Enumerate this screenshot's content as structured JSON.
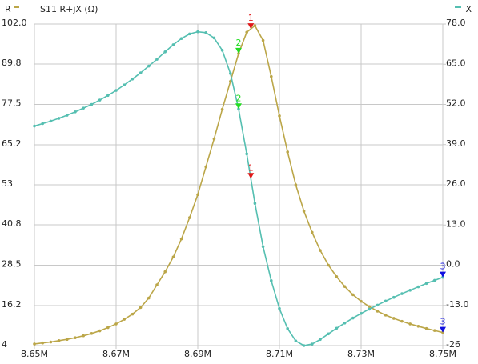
{
  "chart_data": {
    "type": "line",
    "title": "S11 R+jX (Ω)",
    "x": [
      8.65,
      8.652,
      8.654,
      8.656,
      8.658,
      8.66,
      8.662,
      8.664,
      8.666,
      8.668,
      8.67,
      8.672,
      8.674,
      8.676,
      8.678,
      8.68,
      8.682,
      8.684,
      8.686,
      8.688,
      8.69,
      8.692,
      8.694,
      8.696,
      8.698,
      8.7,
      8.702,
      8.704,
      8.706,
      8.708,
      8.71,
      8.712,
      8.714,
      8.716,
      8.718,
      8.72,
      8.722,
      8.724,
      8.726,
      8.728,
      8.73,
      8.732,
      8.734,
      8.736,
      8.738,
      8.74,
      8.742,
      8.744,
      8.746,
      8.748,
      8.75
    ],
    "series": [
      {
        "name": "R",
        "color": "#bba648",
        "values": [
          4.5,
          4.8,
          5.1,
          5.5,
          5.9,
          6.4,
          7.0,
          7.7,
          8.5,
          9.5,
          10.6,
          12.0,
          13.6,
          15.6,
          18.5,
          22.5,
          26.5,
          31,
          36.5,
          43,
          50,
          58.5,
          67,
          76,
          84.5,
          93,
          99.5,
          101.5,
          97,
          86,
          74,
          63,
          53,
          45,
          38.5,
          33,
          28.5,
          25,
          22,
          19.5,
          17.5,
          15.9,
          14.5,
          13.3,
          12.3,
          11.4,
          10.6,
          9.9,
          9.2,
          8.6,
          8.0
        ]
      },
      {
        "name": "X",
        "color": "#55bfb1",
        "axis": "y2",
        "values": [
          45,
          45.8,
          46.6,
          47.5,
          48.5,
          49.6,
          50.8,
          52.0,
          53.4,
          54.9,
          56.5,
          58.3,
          60.2,
          62.2,
          64.4,
          66.6,
          69.0,
          71.3,
          73.3,
          74.8,
          75.5,
          75.2,
          73.5,
          69.5,
          62,
          50.5,
          36,
          20,
          6,
          -5,
          -14,
          -20.5,
          -24.5,
          -26,
          -25.5,
          -24,
          -22.2,
          -20.4,
          -18.7,
          -17.1,
          -15.6,
          -14.2,
          -12.9,
          -11.6,
          -10.4,
          -9.2,
          -8.1,
          -7.0,
          -5.9,
          -4.9,
          -3.9
        ]
      }
    ],
    "markers": [
      {
        "label": "1",
        "x": 8.703,
        "color": "#e01818"
      },
      {
        "label": "2",
        "x": 8.7,
        "color": "#22dd22"
      },
      {
        "label": "3",
        "x": 8.75,
        "color": "#1010e0"
      }
    ],
    "xlim": [
      8.65,
      8.75
    ],
    "xticks": [
      {
        "value": 8.65,
        "label": "8.65M"
      },
      {
        "value": 8.67,
        "label": "8.67M"
      },
      {
        "value": 8.69,
        "label": "8.69M"
      },
      {
        "value": 8.71,
        "label": "8.71M"
      },
      {
        "value": 8.73,
        "label": "8.73M"
      },
      {
        "value": 8.75,
        "label": "8.75M"
      }
    ],
    "ylim": [
      4,
      102
    ],
    "yticks": [
      4,
      16.2,
      28.5,
      40.8,
      53,
      65.2,
      77.5,
      89.8,
      {
        "value": 102,
        "label": "102.0"
      }
    ],
    "y2lim": [
      -26,
      78
    ],
    "y2ticks": [
      -26,
      {
        "value": -13,
        "label": "-13.0"
      },
      {
        "value": 0,
        "label": "0.0"
      },
      {
        "value": 13,
        "label": "13.0"
      },
      {
        "value": 26,
        "label": "26.0"
      },
      {
        "value": 39,
        "label": "39.0"
      },
      {
        "value": 52,
        "label": "52.0"
      },
      {
        "value": 65,
        "label": "65.0"
      },
      {
        "value": 78,
        "label": "78.0"
      }
    ],
    "grid": true
  }
}
